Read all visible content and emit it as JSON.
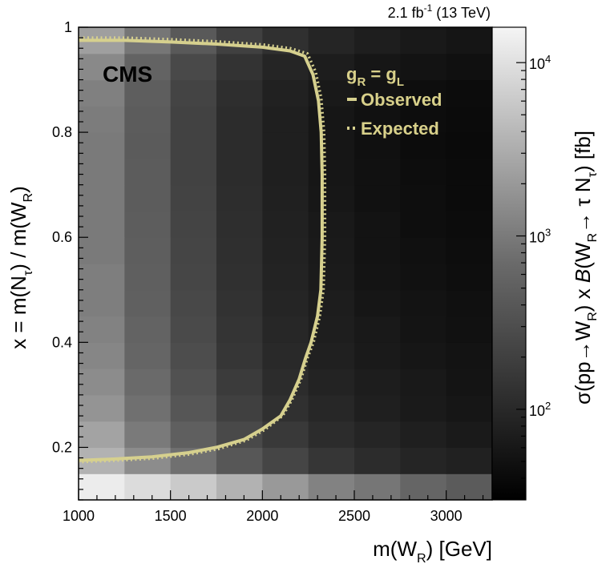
{
  "header": {
    "luminosity": "2.1 fb",
    "lumi_exponent": "-1",
    "energy": "(13 TeV)"
  },
  "experiment_label": "CMS",
  "legend": {
    "coupling": "g",
    "coupling_sub_left": "R",
    "coupling_eq": " = g",
    "coupling_sub_right": "L",
    "observed_label": "Observed",
    "expected_label": "Expected"
  },
  "colors": {
    "contour": "#d6d08e",
    "background": "#ffffff"
  },
  "chart_data": {
    "type": "heatmap",
    "title": "",
    "xlabel": "m(W_R) [GeV]",
    "ylabel": "x = m(N_τ) / m(W_R)",
    "zlabel": "σ(pp→W_R) × B(W_R → τ N_τ) [fb]",
    "xlim": [
      1000,
      3250
    ],
    "ylim": [
      0.1,
      1.0
    ],
    "zlim": [
      30,
      16000
    ],
    "z_scale": "log",
    "x_ticks": [
      1000,
      1500,
      2000,
      2500,
      3000
    ],
    "y_ticks": [
      0.2,
      0.4,
      0.6,
      0.8,
      1
    ],
    "z_ticks": [
      {
        "base": "10",
        "exp": "2",
        "value": 100
      },
      {
        "base": "10",
        "exp": "3",
        "value": 1000
      },
      {
        "base": "10",
        "exp": "4",
        "value": 10000
      }
    ],
    "x_bin_edges": [
      1000,
      1250,
      1500,
      1750,
      2000,
      2250,
      2500,
      2750,
      3000,
      3250
    ],
    "y_bin_edges": [
      0.1,
      0.15,
      0.2,
      0.25,
      0.3,
      0.35,
      0.4,
      0.45,
      0.5,
      0.55,
      0.6,
      0.65,
      0.7,
      0.75,
      0.8,
      0.85,
      0.9,
      0.95,
      1.0
    ],
    "z_values": [
      [
        13000,
        9000,
        6000,
        3500,
        2000,
        1200,
        900,
        600,
        450
      ],
      [
        3500,
        1500,
        800,
        400,
        230,
        150,
        110,
        90,
        80
      ],
      [
        2500,
        1000,
        500,
        260,
        160,
        110,
        90,
        75,
        65
      ],
      [
        1800,
        800,
        380,
        200,
        125,
        95,
        75,
        65,
        58
      ],
      [
        1500,
        700,
        330,
        170,
        110,
        85,
        70,
        62,
        55
      ],
      [
        1300,
        600,
        290,
        150,
        100,
        78,
        65,
        58,
        52
      ],
      [
        1200,
        560,
        270,
        140,
        95,
        74,
        62,
        55,
        50
      ],
      [
        1100,
        520,
        250,
        130,
        90,
        70,
        58,
        52,
        48
      ],
      [
        1100,
        500,
        240,
        125,
        85,
        66,
        55,
        50,
        46
      ],
      [
        1000,
        480,
        230,
        120,
        82,
        64,
        53,
        48,
        44
      ],
      [
        1000,
        470,
        225,
        118,
        80,
        62,
        52,
        46,
        43
      ],
      [
        1000,
        460,
        220,
        115,
        78,
        60,
        50,
        45,
        42
      ],
      [
        1000,
        455,
        215,
        112,
        76,
        58,
        49,
        44,
        41
      ],
      [
        1000,
        450,
        210,
        110,
        75,
        57,
        48,
        43,
        40
      ],
      [
        1050,
        460,
        215,
        112,
        76,
        58,
        49,
        44,
        41
      ],
      [
        1150,
        480,
        225,
        118,
        80,
        62,
        52,
        46,
        43
      ],
      [
        1400,
        560,
        260,
        135,
        90,
        70,
        58,
        52,
        48
      ],
      [
        2300,
        900,
        420,
        200,
        125,
        90,
        72,
        62,
        56
      ]
    ],
    "series": [
      {
        "name": "Observed",
        "style": "solid",
        "x": [
          1000,
          1250,
          1500,
          1750,
          2000,
          2150,
          2230,
          2275,
          2305,
          2320,
          2325,
          2325,
          2318,
          2300,
          2265,
          2235,
          2200,
          2150,
          2100,
          2000,
          1900,
          1750,
          1600,
          1400,
          1200,
          1000
        ],
        "y": [
          0.975,
          0.975,
          0.972,
          0.968,
          0.962,
          0.955,
          0.945,
          0.91,
          0.86,
          0.8,
          0.72,
          0.6,
          0.5,
          0.45,
          0.4,
          0.37,
          0.33,
          0.29,
          0.26,
          0.235,
          0.215,
          0.2,
          0.19,
          0.182,
          0.178,
          0.175
        ]
      },
      {
        "name": "Expected",
        "style": "dotted",
        "x": [
          1000,
          1250,
          1500,
          1750,
          2000,
          2150,
          2245,
          2290,
          2320,
          2335,
          2340,
          2340,
          2332,
          2312,
          2278,
          2245,
          2210,
          2160,
          2110,
          2010,
          1910,
          1760,
          1610,
          1410,
          1210,
          1000
        ],
        "y": [
          0.98,
          0.98,
          0.977,
          0.973,
          0.967,
          0.96,
          0.95,
          0.915,
          0.865,
          0.8,
          0.72,
          0.6,
          0.5,
          0.45,
          0.4,
          0.37,
          0.33,
          0.29,
          0.26,
          0.233,
          0.213,
          0.197,
          0.187,
          0.179,
          0.175,
          0.172
        ]
      }
    ]
  }
}
